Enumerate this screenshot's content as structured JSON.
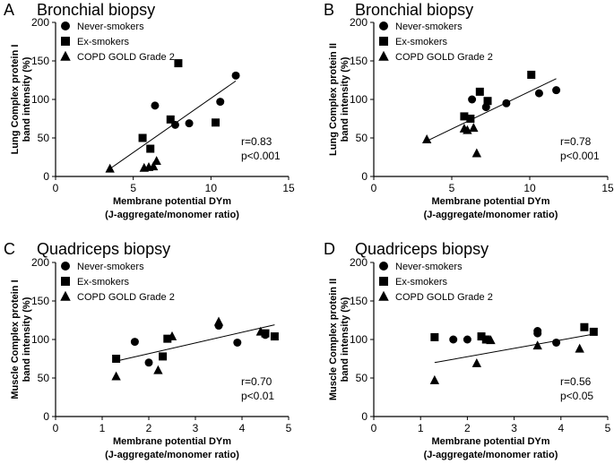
{
  "chart_data": [
    {
      "type": "scatter",
      "panel_label": "A",
      "title": "Bronchial biopsy",
      "xlabel": "Membrane potential DYm",
      "xlabel2": "(J-aggregate/monomer ratio)",
      "ylabel": "Lung Complex protein I",
      "ylabel2": "band intensity (%)",
      "xlim": [
        0,
        15
      ],
      "ylim": [
        0,
        200
      ],
      "xticks": [
        0,
        5,
        10,
        15
      ],
      "yticks": [
        0,
        50,
        100,
        150,
        200
      ],
      "legend": [
        "Never-smokers",
        "Ex-smokers",
        "COPD GOLD Grade 2"
      ],
      "series": [
        {
          "name": "Never-smokers",
          "marker": "circle",
          "points": [
            [
              6.4,
              92
            ],
            [
              7.7,
              67
            ],
            [
              8.6,
              69
            ],
            [
              10.6,
              97
            ],
            [
              11.6,
              131
            ]
          ]
        },
        {
          "name": "Ex-smokers",
          "marker": "square",
          "points": [
            [
              5.6,
              50
            ],
            [
              6.1,
              36
            ],
            [
              7.4,
              74
            ],
            [
              7.9,
              147
            ],
            [
              10.3,
              70
            ]
          ]
        },
        {
          "name": "COPD GOLD Grade 2",
          "marker": "triangle",
          "points": [
            [
              3.5,
              10
            ],
            [
              5.7,
              11
            ],
            [
              6.0,
              12
            ],
            [
              6.3,
              13
            ],
            [
              6.5,
              20
            ]
          ]
        }
      ],
      "fit": {
        "x1": 3.5,
        "y1": 10,
        "x2": 11.6,
        "y2": 124
      },
      "annotation": [
        "r=0.83",
        "p<0.001"
      ]
    },
    {
      "type": "scatter",
      "panel_label": "B",
      "title": "Bronchial biopsy",
      "xlabel": "Membrane potential DYm",
      "xlabel2": "(J-aggregate/monomer ratio)",
      "ylabel": "Lung Complex protein II",
      "ylabel2": "band intensity (%)",
      "xlim": [
        0,
        15
      ],
      "ylim": [
        0,
        200
      ],
      "xticks": [
        0,
        5,
        10,
        15
      ],
      "yticks": [
        0,
        50,
        100,
        150,
        200
      ],
      "legend": [
        "Never-smokers",
        "Ex-smokers",
        "COPD GOLD Grade 2"
      ],
      "series": [
        {
          "name": "Never-smokers",
          "marker": "circle",
          "points": [
            [
              6.3,
              100
            ],
            [
              7.2,
              90
            ],
            [
              8.5,
              95
            ],
            [
              10.6,
              108
            ],
            [
              11.7,
              112
            ]
          ]
        },
        {
          "name": "Ex-smokers",
          "marker": "square",
          "points": [
            [
              5.8,
              78
            ],
            [
              6.2,
              75
            ],
            [
              6.8,
              110
            ],
            [
              7.3,
              98
            ],
            [
              10.1,
              132
            ]
          ]
        },
        {
          "name": "COPD GOLD Grade 2",
          "marker": "triangle",
          "points": [
            [
              3.4,
              48
            ],
            [
              5.8,
              62
            ],
            [
              6.0,
              60
            ],
            [
              6.4,
              63
            ],
            [
              6.6,
              30
            ]
          ]
        }
      ],
      "fit": {
        "x1": 3.4,
        "y1": 46,
        "x2": 11.7,
        "y2": 127
      },
      "annotation": [
        "r=0.78",
        "p<0.001"
      ]
    },
    {
      "type": "scatter",
      "panel_label": "C",
      "title": "Quadriceps biopsy",
      "xlabel": "Membrane potential DYm",
      "xlabel2": "(J-aggregate/monomer ratio)",
      "ylabel": "Muscle Complex protein I",
      "ylabel2": "band intensity (%)",
      "xlim": [
        0,
        5
      ],
      "ylim": [
        0,
        200
      ],
      "xticks": [
        0,
        1,
        2,
        3,
        4,
        5
      ],
      "yticks": [
        0,
        50,
        100,
        150,
        200
      ],
      "legend": [
        "Never-smokers",
        "Ex-smokers",
        "COPD GOLD Grade 2"
      ],
      "series": [
        {
          "name": "Never-smokers",
          "marker": "circle",
          "points": [
            [
              1.7,
              97
            ],
            [
              2.0,
              70
            ],
            [
              3.5,
              118
            ],
            [
              3.9,
              96
            ],
            [
              4.5,
              106
            ]
          ]
        },
        {
          "name": "Ex-smokers",
          "marker": "square",
          "points": [
            [
              1.3,
              75
            ],
            [
              2.3,
              78
            ],
            [
              2.4,
              101
            ],
            [
              4.5,
              108
            ],
            [
              4.7,
              104
            ]
          ]
        },
        {
          "name": "COPD GOLD Grade 2",
          "marker": "triangle",
          "points": [
            [
              1.3,
              52
            ],
            [
              2.2,
              60
            ],
            [
              2.5,
              104
            ],
            [
              3.5,
              123
            ],
            [
              4.4,
              110
            ]
          ]
        }
      ],
      "fit": {
        "x1": 1.3,
        "y1": 72,
        "x2": 4.7,
        "y2": 119
      },
      "annotation": [
        "r=0.70",
        "p<0.01"
      ]
    },
    {
      "type": "scatter",
      "panel_label": "D",
      "title": "Quadriceps biopsy",
      "xlabel": "Membrane potential DYm",
      "xlabel2": "(J-aggregate/monomer ratio)",
      "ylabel": "Muscle Complex protein II",
      "ylabel2": "band intensity (%)",
      "xlim": [
        0,
        5
      ],
      "ylim": [
        0,
        200
      ],
      "xticks": [
        0,
        1,
        2,
        3,
        4,
        5
      ],
      "yticks": [
        0,
        50,
        100,
        150,
        200
      ],
      "legend": [
        "Never-smokers",
        "Ex-smokers",
        "COPD GOLD Grade 2"
      ],
      "series": [
        {
          "name": "Never-smokers",
          "marker": "circle",
          "points": [
            [
              1.7,
              100
            ],
            [
              2.0,
              100
            ],
            [
              3.5,
              108
            ],
            [
              3.5,
              111
            ],
            [
              3.9,
              96
            ]
          ]
        },
        {
          "name": "Ex-smokers",
          "marker": "square",
          "points": [
            [
              1.3,
              103
            ],
            [
              2.3,
              104
            ],
            [
              2.4,
              100
            ],
            [
              4.5,
              116
            ],
            [
              4.7,
              110
            ]
          ]
        },
        {
          "name": "COPD GOLD Grade 2",
          "marker": "triangle",
          "points": [
            [
              1.3,
              47
            ],
            [
              2.2,
              69
            ],
            [
              2.5,
              99
            ],
            [
              3.5,
              92
            ],
            [
              4.4,
              88
            ]
          ]
        }
      ],
      "fit": {
        "x1": 1.3,
        "y1": 70,
        "x2": 4.7,
        "y2": 107
      },
      "annotation": [
        "r=0.56",
        "p<0.05"
      ]
    }
  ]
}
